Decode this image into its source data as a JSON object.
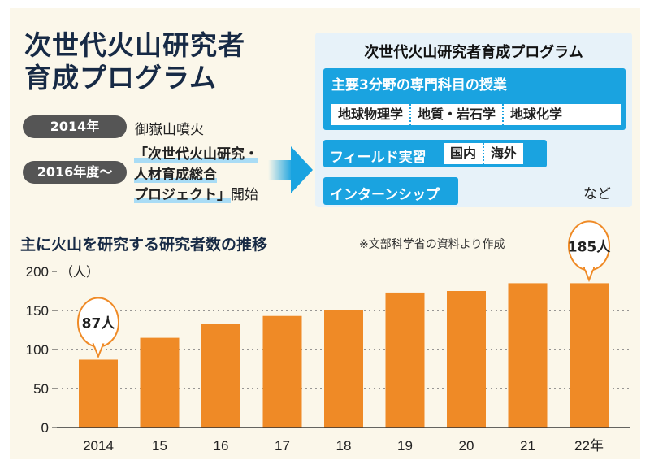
{
  "header": {
    "title_line1": "次世代火山研究者",
    "title_line2": "育成プログラム"
  },
  "timeline": [
    {
      "badge": "2014年",
      "text": "御嶽山噴火"
    },
    {
      "badge": "2016年度〜",
      "project_lines": [
        "「次世代火山研究・",
        "人材育成総合",
        "プロジェクト」"
      ],
      "suffix": "開始"
    }
  ],
  "program": {
    "title": "次世代火山研究者育成プログラム",
    "lecture": {
      "label": "主要3分野の専門科目の授業",
      "fields": [
        "地球物理学",
        "地質・岩石学",
        "地球化学"
      ]
    },
    "field": {
      "label": "フィールド実習",
      "options": [
        "国内",
        "海外"
      ]
    },
    "internship": {
      "label": "インターンシップ"
    },
    "etc": "など"
  },
  "colors": {
    "bar": "#ef8a26",
    "accent_blue": "#1aa3e0",
    "title_navy": "#172a45",
    "background": "#fbf7ea"
  },
  "chart_data": {
    "type": "bar",
    "title": "主に火山を研究する研究者数の推移",
    "note": "※文部科学省の資料より作成",
    "ylabel": "（人）",
    "categories": [
      "2014",
      "15",
      "16",
      "17",
      "18",
      "19",
      "20",
      "21",
      "22年"
    ],
    "values": [
      87,
      115,
      133,
      143,
      151,
      173,
      175,
      185,
      185
    ],
    "ylim": [
      0,
      200
    ],
    "yticks": [
      0,
      50,
      100,
      150,
      200
    ],
    "grid": "dotted horizontal",
    "callouts": [
      {
        "index": 0,
        "label": "87人"
      },
      {
        "index": 8,
        "label": "185人"
      }
    ]
  }
}
